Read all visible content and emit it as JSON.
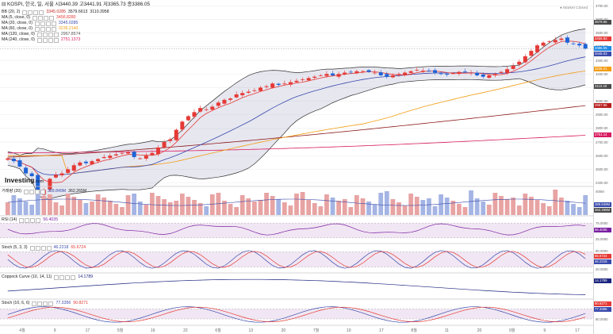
{
  "header": {
    "symbol": "KOSPI, 한국, 일, 서울",
    "open": "시3440.39",
    "high": "고3441.91",
    "low": "저3365.73",
    "close": "종3386.05"
  },
  "market_status": "Market Closed",
  "logo": {
    "main": "Investing",
    "suffix": ".com"
  },
  "legends": {
    "bb": {
      "label": "BB (20, 2)",
      "v1": "3345.0285",
      "v2": "3579.6613",
      "v3": "3110.3958"
    },
    "ma5": {
      "label": "MA (5, close, 0)",
      "v": "3456.8280"
    },
    "ma20": {
      "label": "MA (20, close, 0)",
      "v": "3345.0285"
    },
    "ma60": {
      "label": "MA (60, close, 0)",
      "v": "3236.2140"
    },
    "ma120": {
      "label": "MA (120, close, 0)",
      "v": "2967.8574"
    },
    "ma240": {
      "label": "MA (240, close, 0)",
      "v": "2751.1373"
    },
    "vol": {
      "label": "거래량 (20)",
      "v1": "389.849M",
      "v2": "362.265M"
    },
    "rsi": {
      "label": "RSI (14)",
      "v": "56.4035"
    },
    "stoch1": {
      "label": "Stoch (5, 3, 3)",
      "v1": "46.2218",
      "v2": "65.6724"
    },
    "coppock": {
      "label": "Coppock Curve (10, 14, 11)",
      "v": "14.1789"
    },
    "stoch2": {
      "label": "Stoch (10, 6, 6)",
      "v1": "77.3356",
      "v2": "90.8271"
    }
  },
  "price_ticks": [
    "3700.00",
    "3600.00",
    "3500.00",
    "3400.00",
    "3300.00",
    "3200.00",
    "3100.00",
    "3000.00",
    "2900.00",
    "2800.00",
    "2700.00",
    "2600.00",
    "2500.00",
    "2400.00"
  ],
  "price_tags": [
    {
      "text": "3579.66",
      "color": "#4a4a4a",
      "value": 3579.66
    },
    {
      "text": "3456.83",
      "color": "#e53935",
      "value": 3456.83
    },
    {
      "text": "3386.05",
      "color": "#1e88e5",
      "value": 3386.05
    },
    {
      "text": "3345.03",
      "color": "#3949ab",
      "value": 3345.03
    },
    {
      "text": "3236.21",
      "color": "#f39c12",
      "value": 3236.21
    },
    {
      "text": "3110.40",
      "color": "#4a4a4a",
      "value": 3110.4
    },
    {
      "text": "2967.86",
      "color": "#b71c1c",
      "value": 2967.86
    },
    {
      "text": "2751.14",
      "color": "#d81b60",
      "value": 2751.14
    }
  ],
  "vol_ticks": [
    "400M"
  ],
  "vol_tags": [
    {
      "text": "389.849M",
      "color": "#3949ab"
    },
    {
      "text": "362.265M",
      "color": "#4a4a4a"
    }
  ],
  "rsi_ticks": [
    "75.0000",
    "25.0000"
  ],
  "rsi_tag": {
    "text": "56.4035",
    "color": "#7b1fa2"
  },
  "stoch1_ticks": [
    "80.0000",
    "20.0000"
  ],
  "stoch1_tags": [
    {
      "text": "65.6724",
      "color": "#e53935"
    },
    {
      "text": "46.2218",
      "color": "#3949ab"
    }
  ],
  "coppock_tag": {
    "text": "14.1789",
    "color": "#1a237e"
  },
  "stoch2_ticks": [
    "80.0000",
    "40.0000"
  ],
  "stoch2_tags": [
    {
      "text": "90.8271",
      "color": "#e53935"
    },
    {
      "text": "77.3356",
      "color": "#3949ab"
    }
  ],
  "x_labels": [
    "4월",
    "9",
    "17",
    "5월",
    "16",
    "22",
    "6월",
    "13",
    "20",
    "7월",
    "10",
    "17",
    "8월",
    "11",
    "20",
    "9월",
    "9",
    "17"
  ],
  "chart_data": {
    "type": "candlestick",
    "title": "KOSPI, 한국, 일, 서울",
    "x_axis": [
      "4월",
      "9",
      "17",
      "5월",
      "16",
      "22",
      "6월",
      "13",
      "20",
      "7월",
      "10",
      "17",
      "8월",
      "11",
      "20",
      "9월",
      "9",
      "17"
    ],
    "ylim": [
      2380,
      3720
    ],
    "close_series": [
      2580,
      2560,
      2520,
      2470,
      2450,
      2320,
      2350,
      2430,
      2460,
      2470,
      2500,
      2530,
      2550,
      2545,
      2560,
      2575,
      2590,
      2600,
      2610,
      2620,
      2625,
      2590,
      2580,
      2600,
      2620,
      2660,
      2700,
      2720,
      2790,
      2850,
      2890,
      2920,
      2950,
      2940,
      2960,
      2990,
      3010,
      3020,
      3050,
      3060,
      3070,
      3080,
      3100,
      3110,
      3130,
      3120,
      3130,
      3140,
      3150,
      3160,
      3170,
      3180,
      3190,
      3200,
      3190,
      3200,
      3210,
      3215,
      3220,
      3220,
      3215,
      3210,
      3190,
      3180,
      3190,
      3200,
      3210,
      3220,
      3230,
      3225,
      3220,
      3210,
      3200,
      3195,
      3205,
      3215,
      3215,
      3210,
      3190,
      3180,
      3190,
      3200,
      3215,
      3235,
      3260,
      3290,
      3330,
      3370,
      3410,
      3430,
      3440,
      3450,
      3460,
      3430,
      3420,
      3410,
      3386
    ],
    "bb_upper_end": 3579.66,
    "bb_lower_end": 3110.4,
    "ma_values_last": {
      "ma5": 3456.83,
      "ma20": 3345.03,
      "ma60": 3236.21,
      "ma120": 2967.86,
      "ma240": 2751.14
    },
    "indicators_last": {
      "rsi": 56.4035,
      "stoch_k": 46.2218,
      "stoch_d": 65.6724,
      "coppock": 14.1789,
      "stoch10_k": 77.3356,
      "stoch10_d": 90.8271,
      "volume": 389.849,
      "volume_ma": 362.265
    }
  }
}
